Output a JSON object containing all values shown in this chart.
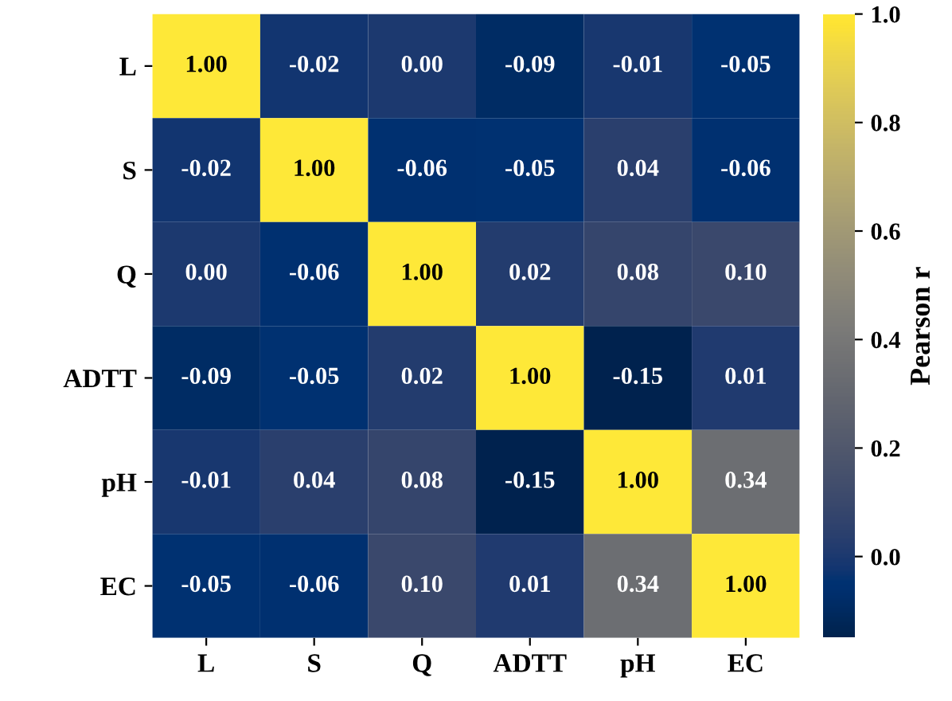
{
  "chart_data": {
    "type": "heatmap",
    "clabel": "Pearson r",
    "categories": [
      "L",
      "S",
      "Q",
      "ADTT",
      "pH",
      "EC"
    ],
    "y_categories": [
      "L",
      "S",
      "Q",
      "ADTT",
      "pH",
      "EC"
    ],
    "cells": [
      [
        1.0,
        -0.02,
        0.0,
        -0.09,
        -0.01,
        -0.05
      ],
      [
        -0.02,
        1.0,
        -0.06,
        -0.05,
        0.04,
        -0.06
      ],
      [
        0.0,
        -0.06,
        1.0,
        0.02,
        0.08,
        0.1
      ],
      [
        -0.09,
        -0.05,
        0.02,
        1.0,
        -0.15,
        0.01
      ],
      [
        -0.01,
        0.04,
        0.08,
        -0.15,
        1.0,
        0.34
      ],
      [
        -0.05,
        -0.06,
        0.1,
        0.01,
        0.34,
        1.0
      ]
    ],
    "cell_labels": [
      [
        "1.00",
        "-0.02",
        "0.00",
        "-0.09",
        "-0.01",
        "-0.05"
      ],
      [
        "-0.02",
        "1.00",
        "-0.06",
        "-0.05",
        "0.04",
        "-0.06"
      ],
      [
        "0.00",
        "-0.06",
        "1.00",
        "0.02",
        "0.08",
        "0.10"
      ],
      [
        "-0.09",
        "-0.05",
        "0.02",
        "1.00",
        "-0.15",
        "0.01"
      ],
      [
        "-0.01",
        "0.04",
        "0.08",
        "-0.15",
        "1.00",
        "0.34"
      ],
      [
        "-0.05",
        "-0.06",
        "0.10",
        "0.01",
        "0.34",
        "1.00"
      ]
    ],
    "clim": [
      -0.15,
      1.0
    ],
    "cticks": [
      {
        "value": 0.0,
        "label": "0.0"
      },
      {
        "value": 0.2,
        "label": "0.2"
      },
      {
        "value": 0.4,
        "label": "0.4"
      },
      {
        "value": 0.6,
        "label": "0.6"
      },
      {
        "value": 0.8,
        "label": "0.8"
      },
      {
        "value": 1.0,
        "label": "1.0"
      }
    ]
  }
}
